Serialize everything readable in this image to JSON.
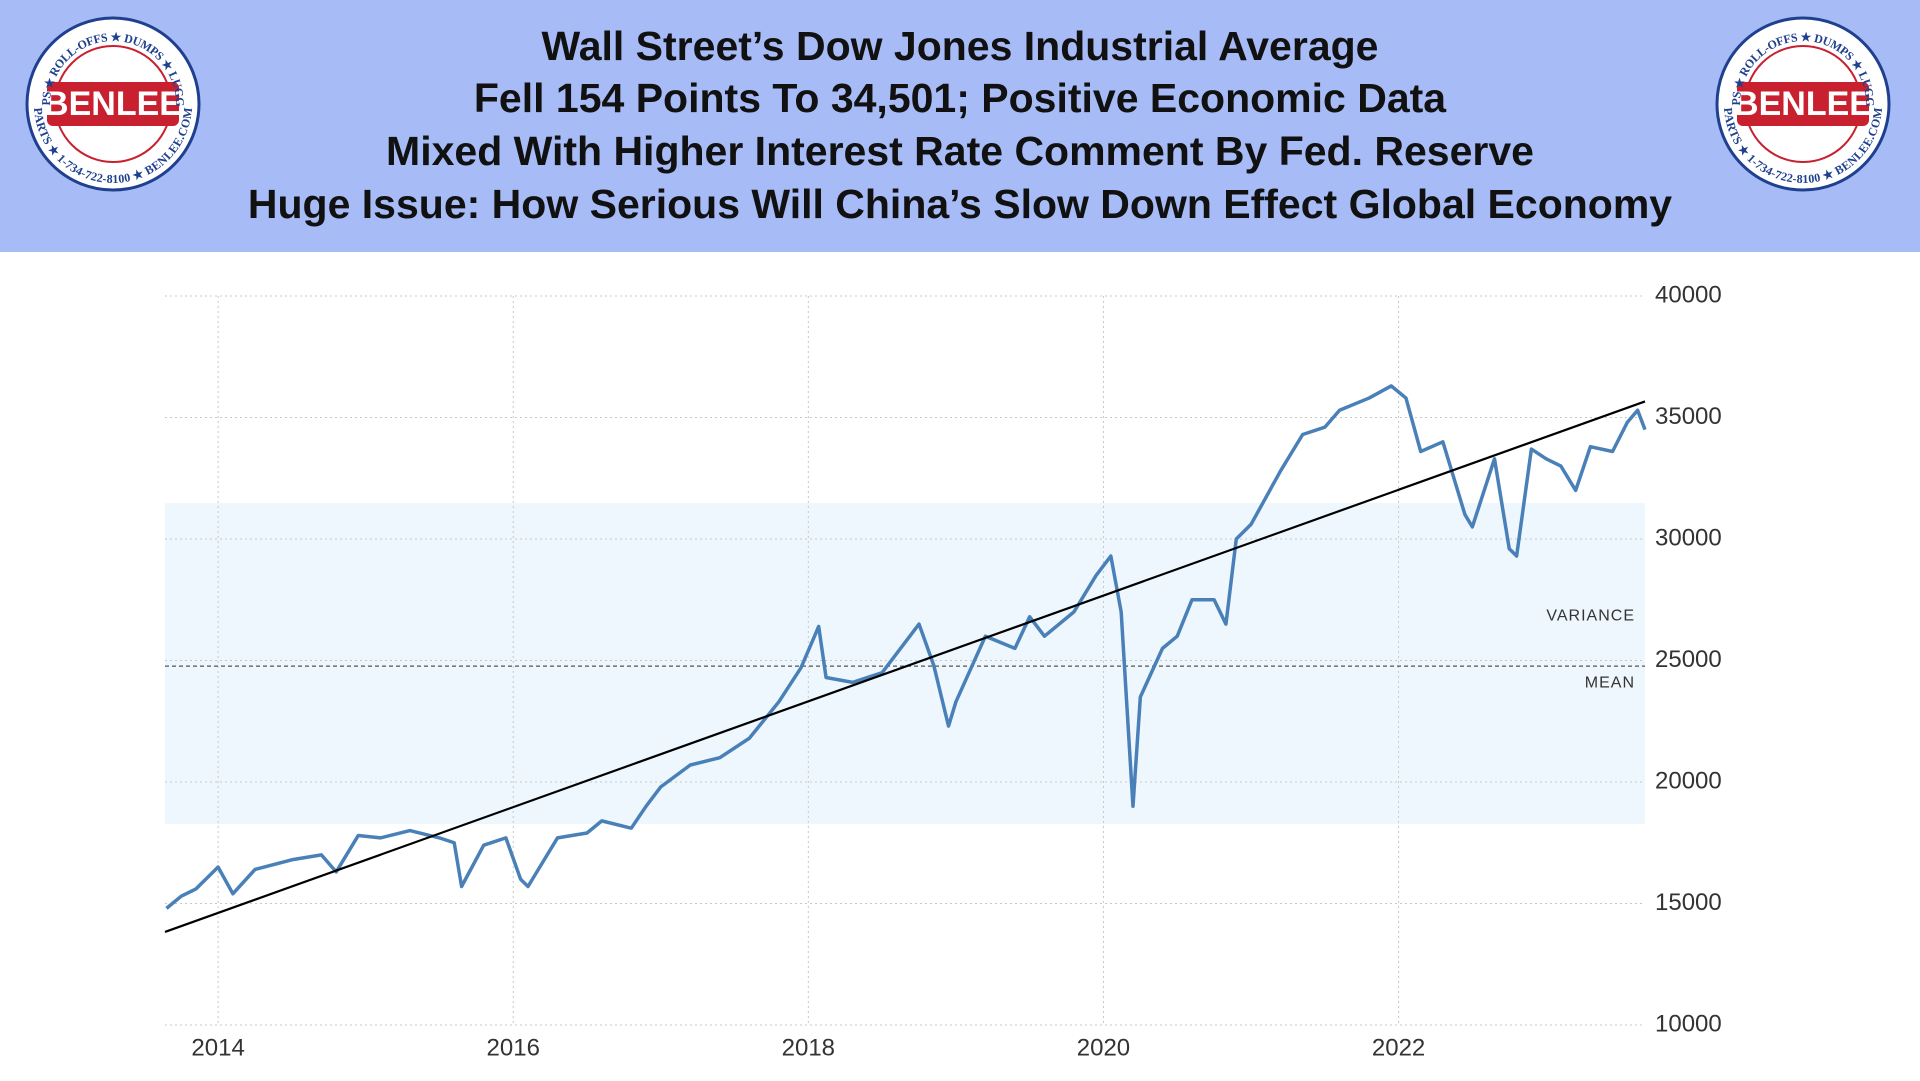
{
  "header": {
    "title_lines": [
      "Wall Street’s Dow Jones Industrial Average",
      "Fell 154 Points To 34,501; Positive Economic Data",
      "Mixed With Higher Interest Rate Comment By Fed. Reserve",
      "Huge Issue: How Serious Will China’s Slow Down Effect Global Economy"
    ],
    "logo": {
      "name": "BENLEE",
      "ring_top": "TARPS ★ ROLL-OFFS ★ DUMPS ★ LUGGERS",
      "ring_bottom": "PARTS ★ 1-734-722-8100 ★ BENLEE.COM"
    }
  },
  "chart_data": {
    "type": "line",
    "x": [
      2013.65,
      2013.75,
      2013.85,
      2014.0,
      2014.1,
      2014.25,
      2014.5,
      2014.7,
      2014.8,
      2014.95,
      2015.1,
      2015.3,
      2015.5,
      2015.6,
      2015.65,
      2015.8,
      2015.95,
      2016.05,
      2016.1,
      2016.3,
      2016.5,
      2016.6,
      2016.8,
      2016.9,
      2017.0,
      2017.2,
      2017.4,
      2017.6,
      2017.8,
      2017.95,
      2018.07,
      2018.12,
      2018.3,
      2018.5,
      2018.75,
      2018.85,
      2018.95,
      2019.0,
      2019.2,
      2019.4,
      2019.5,
      2019.6,
      2019.8,
      2019.95,
      2020.05,
      2020.12,
      2020.2,
      2020.25,
      2020.4,
      2020.5,
      2020.6,
      2020.75,
      2020.83,
      2020.9,
      2021.0,
      2021.2,
      2021.35,
      2021.5,
      2021.6,
      2021.8,
      2021.95,
      2022.05,
      2022.15,
      2022.3,
      2022.4,
      2022.45,
      2022.5,
      2022.65,
      2022.75,
      2022.8,
      2022.9,
      2023.0,
      2023.1,
      2023.2,
      2023.3,
      2023.45,
      2023.55,
      2023.62,
      2023.67
    ],
    "series": [
      {
        "color": "#4a80b8",
        "values": [
          14800,
          15300,
          15600,
          16500,
          15400,
          16400,
          16800,
          17000,
          16300,
          17800,
          17700,
          18000,
          17700,
          17500,
          15700,
          17400,
          17700,
          16000,
          15700,
          17700,
          17900,
          18400,
          18100,
          19000,
          19800,
          20700,
          21000,
          21800,
          23300,
          24700,
          26400,
          24300,
          24100,
          24500,
          26500,
          24800,
          22300,
          23300,
          26000,
          25500,
          26800,
          26000,
          27000,
          28500,
          29300,
          27000,
          19000,
          23500,
          25500,
          26000,
          27500,
          27500,
          26500,
          30000,
          30600,
          32800,
          34300,
          34600,
          35300,
          35800,
          36300,
          35800,
          33600,
          34000,
          32000,
          31000,
          30500,
          33300,
          29600,
          29300,
          33700,
          33300,
          33000,
          32000,
          33800,
          33600,
          34800,
          35300,
          34500
        ]
      }
    ],
    "trend": [
      13830,
      35660
    ],
    "trend_color": "#000000",
    "mean": 24770,
    "variance_band": [
      18270,
      31480
    ],
    "band_color": "#eef7fd",
    "annotations": {
      "variance": "VARIANCE",
      "mean": "MEAN"
    },
    "xlim": [
      2013.64,
      2023.67
    ],
    "xticks": [
      2014,
      2016,
      2018,
      2020,
      2022
    ],
    "ylim": [
      10000,
      40000
    ],
    "yticks": [
      10000,
      15000,
      20000,
      25000,
      30000,
      35000,
      40000
    ],
    "grid": true
  }
}
